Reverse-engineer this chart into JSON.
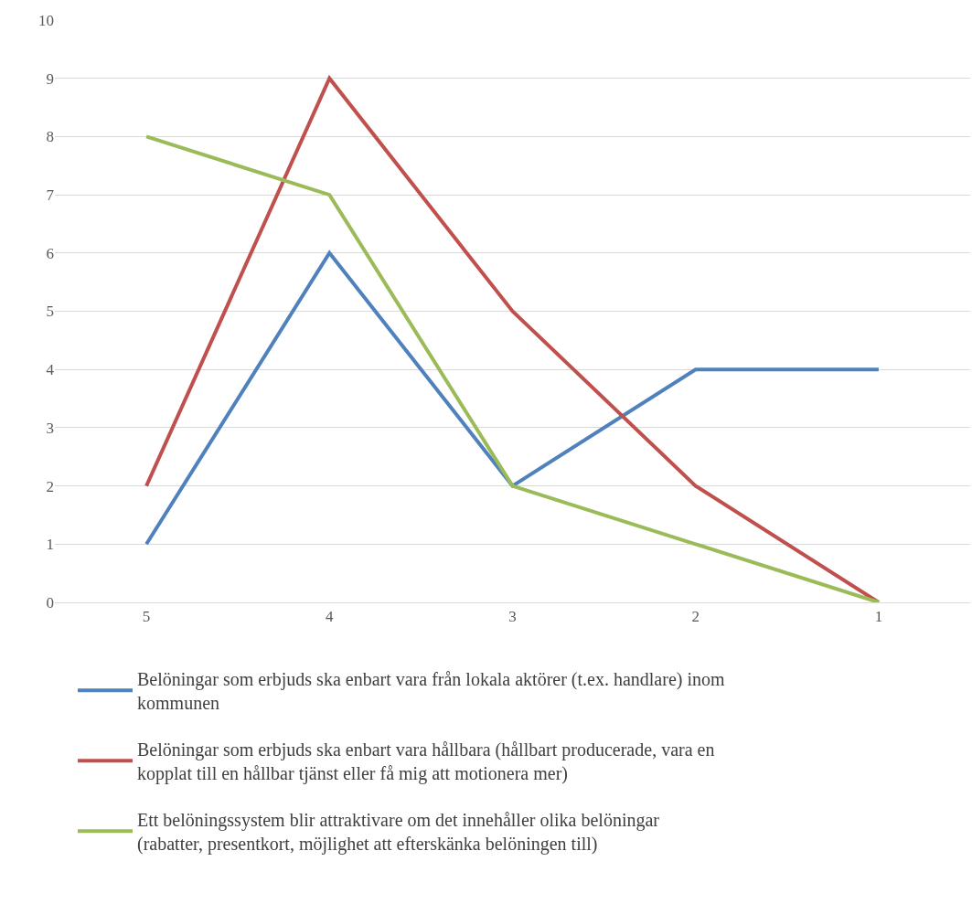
{
  "chart_data": {
    "type": "line",
    "categories": [
      "5",
      "4",
      "3",
      "2",
      "1"
    ],
    "series": [
      {
        "name": "Belöningar som erbjuds ska enbart vara från lokala aktörer (t.ex. handlare) inom kommunen",
        "color": "#4f81bd",
        "values": [
          1,
          6,
          2,
          4,
          4
        ]
      },
      {
        "name": "Belöningar som erbjuds ska enbart vara hållbara (hållbart producerade, vara en kopplat till en hållbar tjänst eller få mig att motionera mer)",
        "color": "#c0504d",
        "values": [
          2,
          9,
          5,
          2,
          0
        ]
      },
      {
        "name": "Ett belöningssystem blir attraktivare om det innehåller olika belöningar (rabatter, presentkort, möjlighet att efterskänka belöningen till)",
        "color": "#9bbb59",
        "values": [
          8,
          7,
          2,
          1,
          0
        ]
      }
    ],
    "ylim": [
      0,
      10
    ],
    "yticks": [
      0,
      1,
      2,
      3,
      4,
      5,
      6,
      7,
      8,
      9,
      10
    ],
    "grid": "y",
    "legend": "bottom",
    "marker": "none",
    "line_style": "solid"
  }
}
